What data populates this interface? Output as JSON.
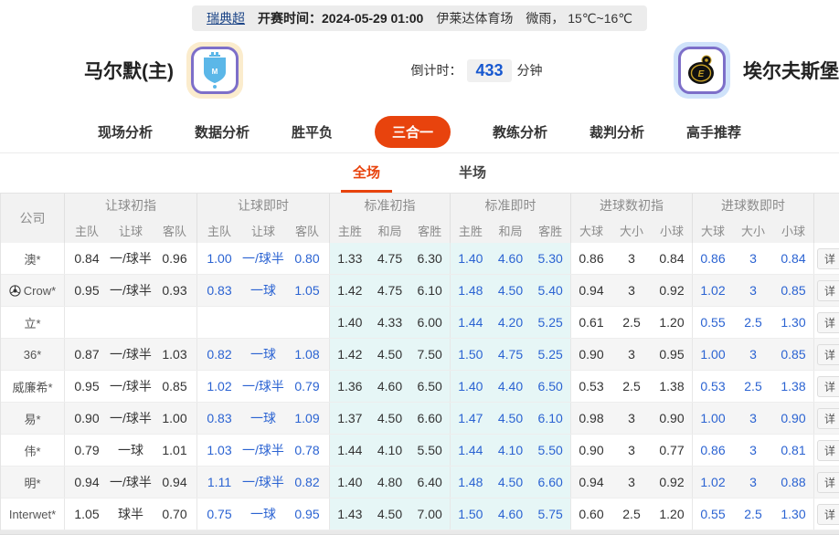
{
  "top_bar": {
    "league": "瑞典超",
    "kickoff_label": "开赛时间：",
    "kickoff_time": "2024-05-29 01:00",
    "venue": "伊莱达体育场",
    "weather": "微雨， 15℃~16℃"
  },
  "match": {
    "home_name": "马尔默(主)",
    "away_name": "埃尔夫斯堡",
    "countdown_label": "倒计时：",
    "countdown_value": "433",
    "countdown_unit": "分钟"
  },
  "tabs": [
    {
      "label": "现场分析",
      "active": false
    },
    {
      "label": "数据分析",
      "active": false
    },
    {
      "label": "胜平负",
      "active": false
    },
    {
      "label": "三合一",
      "active": true
    },
    {
      "label": "教练分析",
      "active": false
    },
    {
      "label": "裁判分析",
      "active": false
    },
    {
      "label": "高手推荐",
      "active": false
    }
  ],
  "subtabs": [
    {
      "label": "全场",
      "active": true
    },
    {
      "label": "半场",
      "active": false
    }
  ],
  "table": {
    "company_header": "公司",
    "detail_label": "详",
    "groups": [
      {
        "title": "让球初指",
        "cols": [
          "主队",
          "让球",
          "客队"
        ],
        "live": false,
        "highlight": false
      },
      {
        "title": "让球即时",
        "cols": [
          "主队",
          "让球",
          "客队"
        ],
        "live": true,
        "highlight": false
      },
      {
        "title": "标准初指",
        "cols": [
          "主胜",
          "和局",
          "客胜"
        ],
        "live": false,
        "highlight": true
      },
      {
        "title": "标准即时",
        "cols": [
          "主胜",
          "和局",
          "客胜"
        ],
        "live": true,
        "highlight": true
      },
      {
        "title": "进球数初指",
        "cols": [
          "大球",
          "大小",
          "小球"
        ],
        "live": false,
        "highlight": false
      },
      {
        "title": "进球数即时",
        "cols": [
          "大球",
          "大小",
          "小球"
        ],
        "live": true,
        "highlight": false
      }
    ],
    "rows": [
      {
        "company": "澳*",
        "ball_icon": false,
        "cells": [
          [
            "0.84",
            "一/球半",
            "0.96"
          ],
          [
            "1.00",
            "一/球半",
            "0.80"
          ],
          [
            "1.33",
            "4.75",
            "6.30"
          ],
          [
            "1.40",
            "4.60",
            "5.30"
          ],
          [
            "0.86",
            "3",
            "0.84"
          ],
          [
            "0.86",
            "3",
            "0.84"
          ]
        ]
      },
      {
        "company": "Crow*",
        "ball_icon": true,
        "cells": [
          [
            "0.95",
            "一/球半",
            "0.93"
          ],
          [
            "0.83",
            "一球",
            "1.05"
          ],
          [
            "1.42",
            "4.75",
            "6.10"
          ],
          [
            "1.48",
            "4.50",
            "5.40"
          ],
          [
            "0.94",
            "3",
            "0.92"
          ],
          [
            "1.02",
            "3",
            "0.85"
          ]
        ]
      },
      {
        "company": "立*",
        "ball_icon": false,
        "cells": [
          [
            "",
            "",
            ""
          ],
          [
            "",
            "",
            ""
          ],
          [
            "1.40",
            "4.33",
            "6.00"
          ],
          [
            "1.44",
            "4.20",
            "5.25"
          ],
          [
            "0.61",
            "2.5",
            "1.20"
          ],
          [
            "0.55",
            "2.5",
            "1.30"
          ]
        ]
      },
      {
        "company": "36*",
        "ball_icon": false,
        "cells": [
          [
            "0.87",
            "一/球半",
            "1.03"
          ],
          [
            "0.82",
            "一球",
            "1.08"
          ],
          [
            "1.42",
            "4.50",
            "7.50"
          ],
          [
            "1.50",
            "4.75",
            "5.25"
          ],
          [
            "0.90",
            "3",
            "0.95"
          ],
          [
            "1.00",
            "3",
            "0.85"
          ]
        ]
      },
      {
        "company": "威廉希*",
        "ball_icon": false,
        "cells": [
          [
            "0.95",
            "一/球半",
            "0.85"
          ],
          [
            "1.02",
            "一/球半",
            "0.79"
          ],
          [
            "1.36",
            "4.60",
            "6.50"
          ],
          [
            "1.40",
            "4.40",
            "6.50"
          ],
          [
            "0.53",
            "2.5",
            "1.38"
          ],
          [
            "0.53",
            "2.5",
            "1.38"
          ]
        ]
      },
      {
        "company": "易*",
        "ball_icon": false,
        "cells": [
          [
            "0.90",
            "一/球半",
            "1.00"
          ],
          [
            "0.83",
            "一球",
            "1.09"
          ],
          [
            "1.37",
            "4.50",
            "6.60"
          ],
          [
            "1.47",
            "4.50",
            "6.10"
          ],
          [
            "0.98",
            "3",
            "0.90"
          ],
          [
            "1.00",
            "3",
            "0.90"
          ]
        ]
      },
      {
        "company": "伟*",
        "ball_icon": false,
        "cells": [
          [
            "0.79",
            "一球",
            "1.01"
          ],
          [
            "1.03",
            "一/球半",
            "0.78"
          ],
          [
            "1.44",
            "4.10",
            "5.50"
          ],
          [
            "1.44",
            "4.10",
            "5.50"
          ],
          [
            "0.90",
            "3",
            "0.77"
          ],
          [
            "0.86",
            "3",
            "0.81"
          ]
        ]
      },
      {
        "company": "明*",
        "ball_icon": false,
        "cells": [
          [
            "0.94",
            "一/球半",
            "0.94"
          ],
          [
            "1.11",
            "一/球半",
            "0.82"
          ],
          [
            "1.40",
            "4.80",
            "6.40"
          ],
          [
            "1.48",
            "4.50",
            "6.60"
          ],
          [
            "0.94",
            "3",
            "0.92"
          ],
          [
            "1.02",
            "3",
            "0.88"
          ]
        ]
      },
      {
        "company": "Interwet*",
        "ball_icon": false,
        "cells": [
          [
            "1.05",
            "球半",
            "0.70"
          ],
          [
            "0.75",
            "一球",
            "0.95"
          ],
          [
            "1.43",
            "4.50",
            "7.00"
          ],
          [
            "1.50",
            "4.60",
            "5.75"
          ],
          [
            "0.60",
            "2.5",
            "1.20"
          ],
          [
            "0.55",
            "2.5",
            "1.30"
          ]
        ]
      }
    ]
  },
  "colors": {
    "accent": "#e8430d",
    "odds_link_blue": "#2b63d2",
    "league_navy": "#1c4587",
    "countdown_blue": "#1758d0",
    "highlight_bg": "#e6f6f6",
    "stripe_bg": "#f5f5f5"
  }
}
